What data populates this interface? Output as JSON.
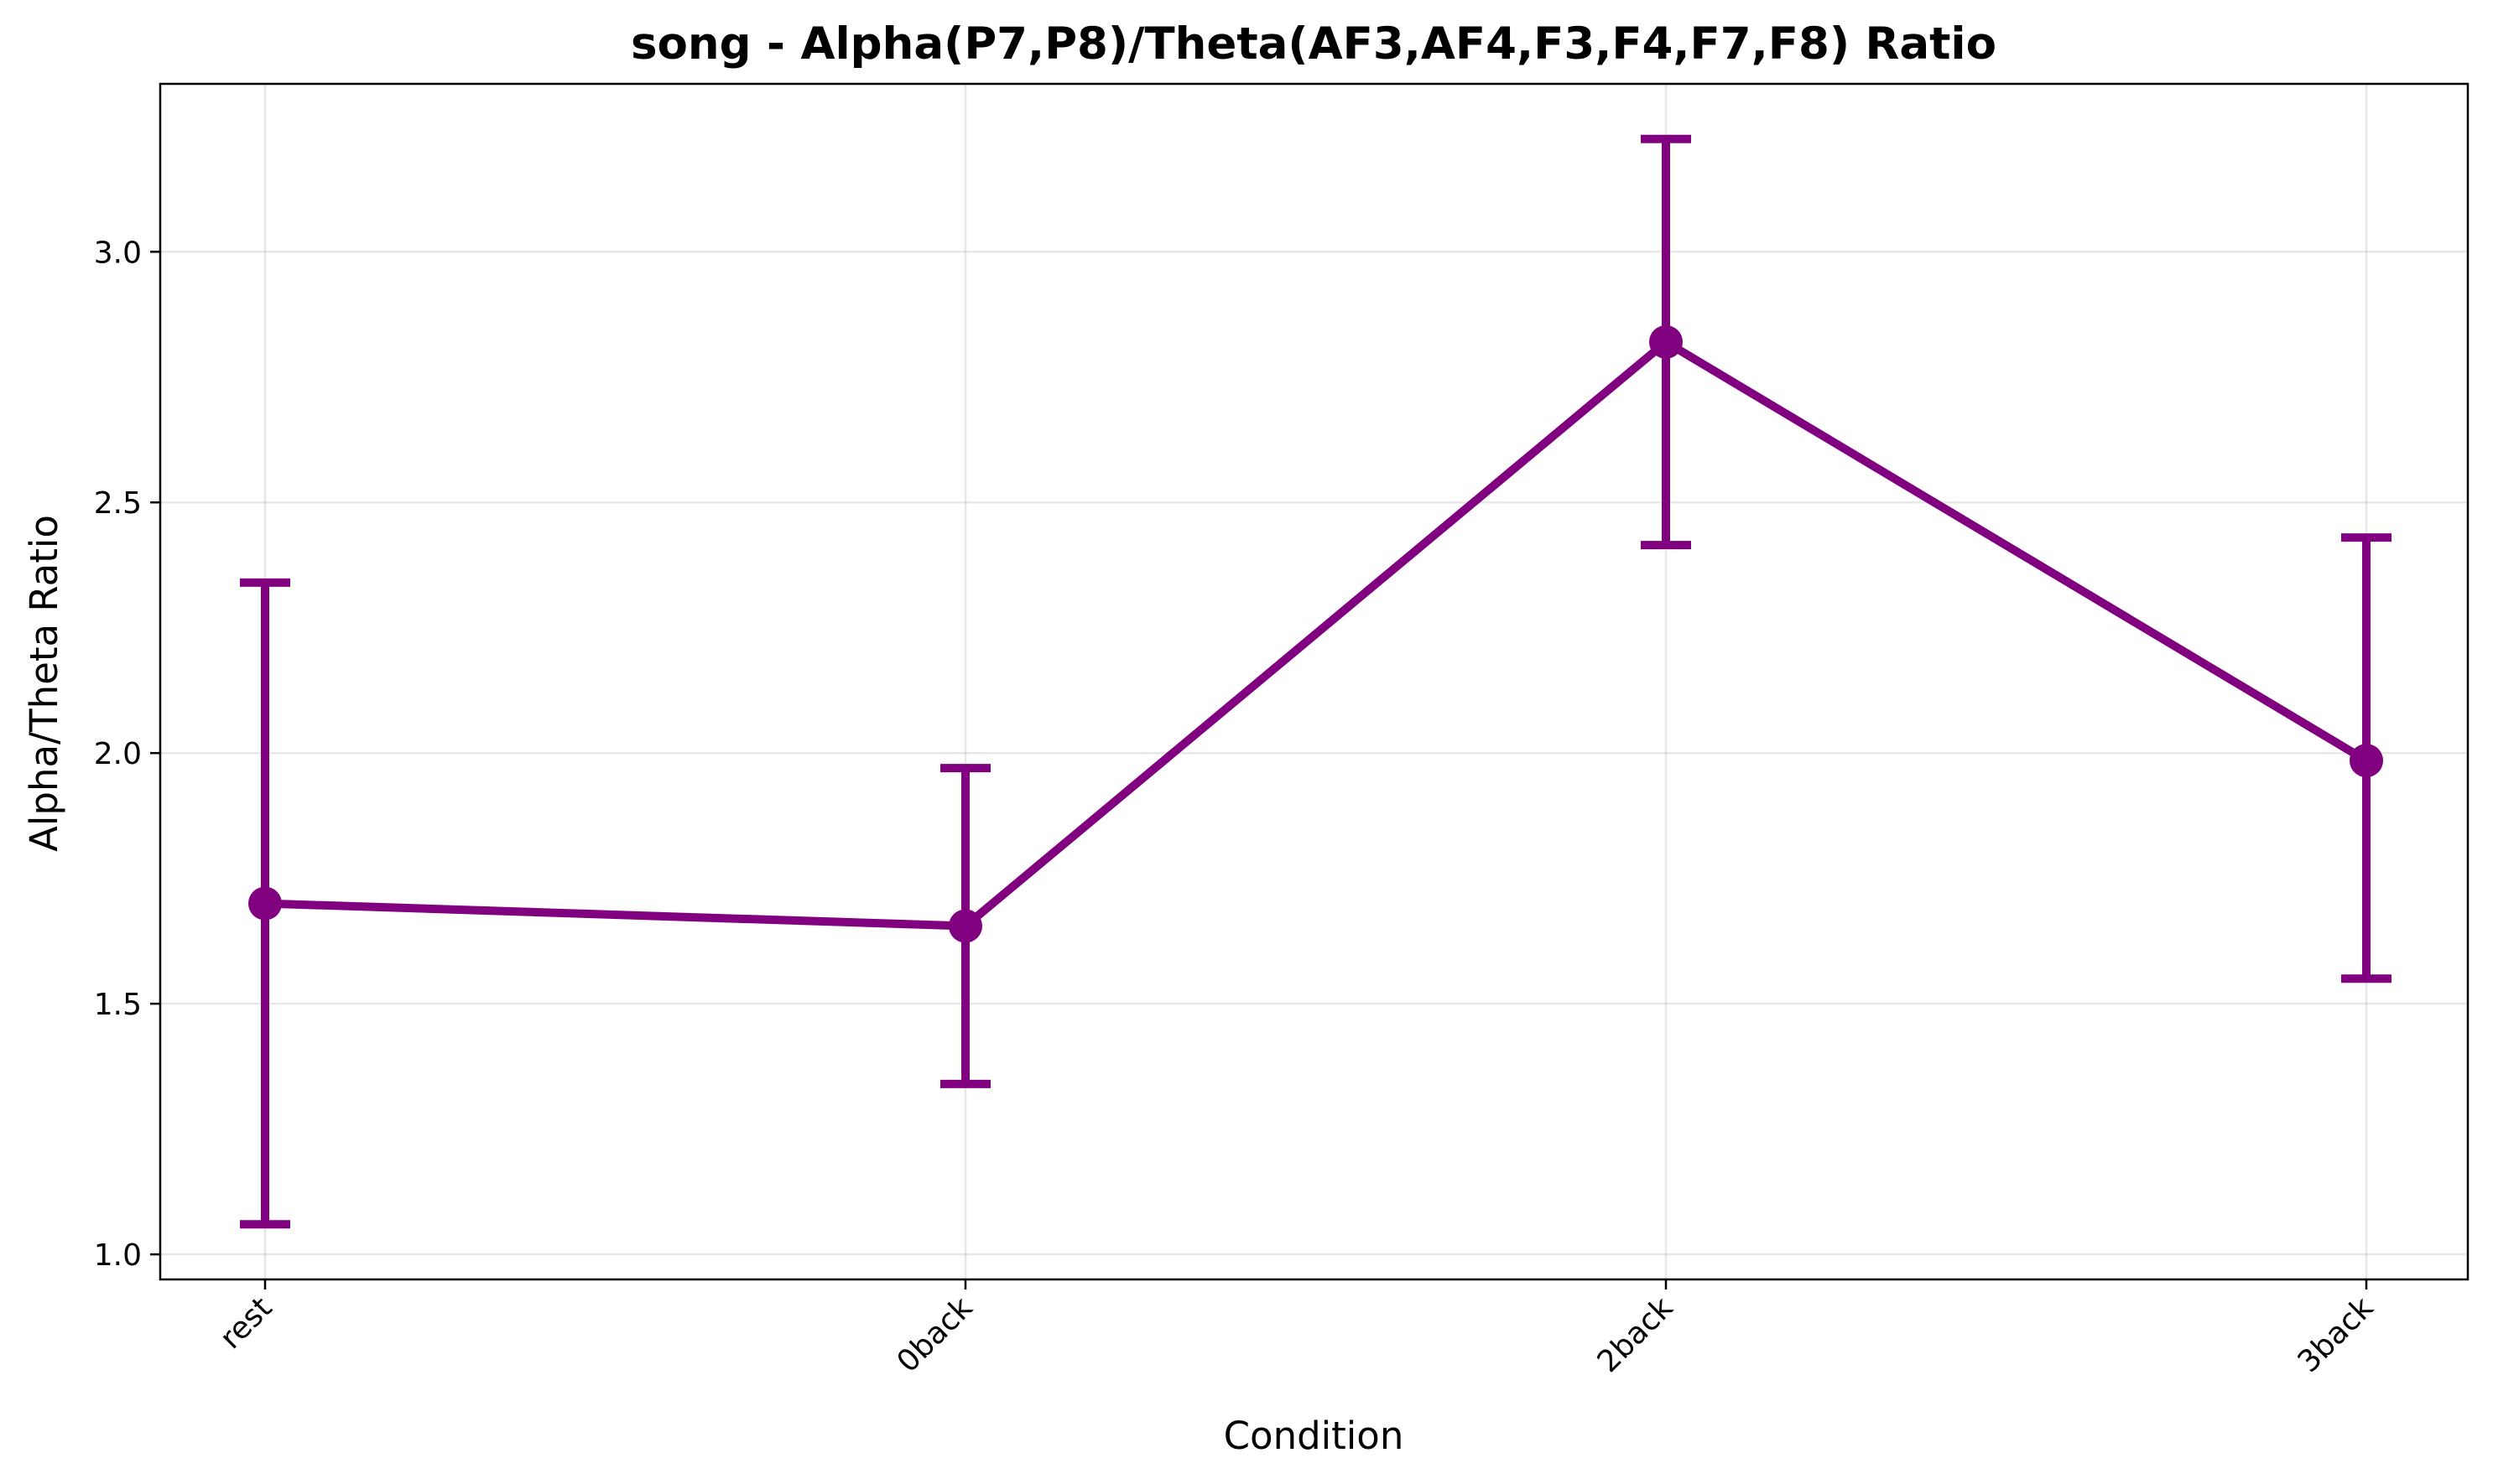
{
  "chart_data": {
    "type": "line",
    "title": "song - Alpha(P7,P8)/Theta(AF3,AF4,F3,F4,F7,F8) Ratio",
    "xlabel": "Condition",
    "ylabel": "Alpha/Theta Ratio",
    "categories": [
      "rest",
      "0back",
      "2back",
      "3back"
    ],
    "values": [
      1.7,
      1.655,
      2.82,
      1.985
    ],
    "error_low": [
      1.06,
      1.34,
      2.415,
      1.55
    ],
    "error_high": [
      2.34,
      1.97,
      3.225,
      2.43
    ],
    "ylim": [
      0.95,
      3.335
    ],
    "yticks": [
      1.0,
      1.5,
      2.0,
      2.5,
      3.0
    ],
    "ytick_labels": [
      "1.0",
      "1.5",
      "2.0",
      "2.5",
      "3.0"
    ],
    "grid": true,
    "legend": "none",
    "colors": {
      "series": "#800080"
    }
  }
}
